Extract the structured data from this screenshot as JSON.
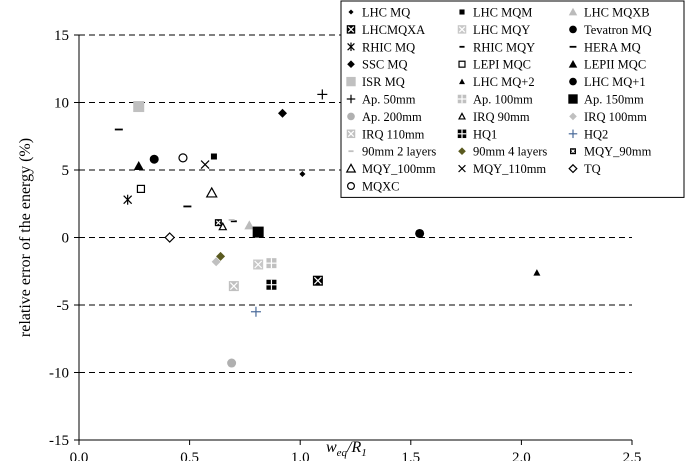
{
  "chart_data": {
    "type": "scatter",
    "xlabel": "w_eq/R_1",
    "xlabel_main": "w",
    "xlabel_sub": "eq",
    "xlabel_mid": "/R",
    "xlabel_sub2": "1",
    "ylabel": "relative error of the energy (%)",
    "xlim": [
      0.0,
      2.5
    ],
    "ylim": [
      -15,
      15
    ],
    "x_ticks": [
      "0.0",
      "0.5",
      "1.0",
      "1.5",
      "2.0",
      "2.5"
    ],
    "y_ticks": [
      "15",
      "10",
      "5",
      "0",
      "-5",
      "-10",
      "-15"
    ],
    "grid": "dashed horizontal",
    "legend_position": "top-right",
    "series": [
      {
        "name": "LHC MQ",
        "marker": "diamond-small",
        "color": "#000000",
        "points": [
          [
            1.01,
            4.7
          ]
        ]
      },
      {
        "name": "LHC MQM",
        "marker": "square-small",
        "color": "#000000",
        "points": [
          [
            0.61,
            6.0
          ]
        ]
      },
      {
        "name": "LHC MQXB",
        "marker": "triangle",
        "color": "#bbbbbb",
        "points": [
          [
            0.77,
            0.9
          ]
        ]
      },
      {
        "name": "LHCMQXA",
        "marker": "square-x",
        "color": "#000000",
        "points": [
          [
            1.08,
            -3.2
          ]
        ]
      },
      {
        "name": "LHC MQY",
        "marker": "square-x",
        "color": "#c8c8c8",
        "points": [
          [
            0.81,
            -2.0
          ]
        ]
      },
      {
        "name": "Tevatron MQ",
        "marker": "circle",
        "color": "#000000",
        "points": [
          [
            1.54,
            0.3
          ]
        ]
      },
      {
        "name": "RHIC MQ",
        "marker": "asterisk",
        "color": "#000000",
        "points": [
          [
            0.22,
            2.8
          ]
        ]
      },
      {
        "name": "RHIC MQY",
        "marker": "dash",
        "color": "#000000",
        "points": [
          [
            0.7,
            1.2
          ]
        ]
      },
      {
        "name": "HERA MQ",
        "marker": "dash-long",
        "color": "#000000",
        "points": [
          [
            0.18,
            8.0
          ],
          [
            0.49,
            2.3
          ]
        ]
      },
      {
        "name": "SSC MQ",
        "marker": "diamond",
        "color": "#000000",
        "points": [
          [
            0.92,
            9.2
          ]
        ]
      },
      {
        "name": "LEPI MQC",
        "marker": "square-open",
        "color": "#000000",
        "points": [
          [
            0.28,
            3.6
          ]
        ]
      },
      {
        "name": "LEPII MQC",
        "marker": "triangle",
        "color": "#000000",
        "points": [
          [
            0.27,
            5.3
          ]
        ]
      },
      {
        "name": "ISR MQ",
        "marker": "square-big",
        "color": "#c0c0c0",
        "points": [
          [
            0.27,
            9.7
          ]
        ]
      },
      {
        "name": "LHC MQ+2",
        "marker": "triangle-small",
        "color": "#000000",
        "points": [
          [
            2.07,
            -2.6
          ]
        ]
      },
      {
        "name": "LHC MQ+1",
        "marker": "circle",
        "color": "#000000",
        "points": [
          [
            0.34,
            5.8
          ]
        ]
      },
      {
        "name": "Ap. 50mm",
        "marker": "plus",
        "color": "#000000",
        "points": [
          [
            1.1,
            10.6
          ]
        ]
      },
      {
        "name": "Ap. 100mm",
        "marker": "square-plus",
        "color": "#c0c0c0",
        "points": [
          [
            0.87,
            -1.9
          ]
        ]
      },
      {
        "name": "Ap. 150mm",
        "marker": "square-big",
        "color": "#000000",
        "points": [
          [
            0.81,
            0.4
          ]
        ]
      },
      {
        "name": "Ap. 200mm",
        "marker": "circle",
        "color": "#b0b0b0",
        "points": [
          [
            0.69,
            -9.3
          ]
        ]
      },
      {
        "name": "IRQ 90mm",
        "marker": "triangle-small-open",
        "color": "#000000",
        "points": [
          [
            0.65,
            0.8
          ]
        ]
      },
      {
        "name": "IRQ 100mm",
        "marker": "diamond",
        "color": "#c0c0c0",
        "points": [
          [
            0.62,
            -1.8
          ]
        ]
      },
      {
        "name": "IRQ 110mm",
        "marker": "square-x",
        "color": "#c0c0c0",
        "points": [
          [
            0.7,
            -3.6
          ]
        ]
      },
      {
        "name": "HQ1",
        "marker": "square-plus",
        "color": "#000000",
        "points": [
          [
            0.87,
            -3.5
          ]
        ]
      },
      {
        "name": "HQ2",
        "marker": "plus",
        "color": "#4a6a9a",
        "points": [
          [
            0.8,
            -5.5
          ]
        ]
      },
      {
        "name": "90mm 2 layers",
        "marker": "dash",
        "color": "#c0c0c0",
        "points": [
          [
            0.69,
            1.3
          ]
        ]
      },
      {
        "name": "90mm 4 layers",
        "marker": "diamond",
        "color": "#5a5a20",
        "points": [
          [
            0.64,
            -1.4
          ]
        ]
      },
      {
        "name": "MQY_90mm",
        "marker": "square-x-small",
        "color": "#000000",
        "points": [
          [
            0.63,
            1.1
          ]
        ]
      },
      {
        "name": "MQY_100mm",
        "marker": "triangle-open",
        "color": "#000000",
        "points": [
          [
            0.6,
            3.3
          ]
        ]
      },
      {
        "name": "MQY_110mm",
        "marker": "x",
        "color": "#000000",
        "points": [
          [
            0.57,
            5.4
          ]
        ]
      },
      {
        "name": "TQ",
        "marker": "diamond-open",
        "color": "#000000",
        "points": [
          [
            0.41,
            0.0
          ]
        ]
      },
      {
        "name": "MQXC",
        "marker": "circle-open",
        "color": "#000000",
        "points": [
          [
            0.47,
            5.9
          ]
        ]
      }
    ]
  }
}
